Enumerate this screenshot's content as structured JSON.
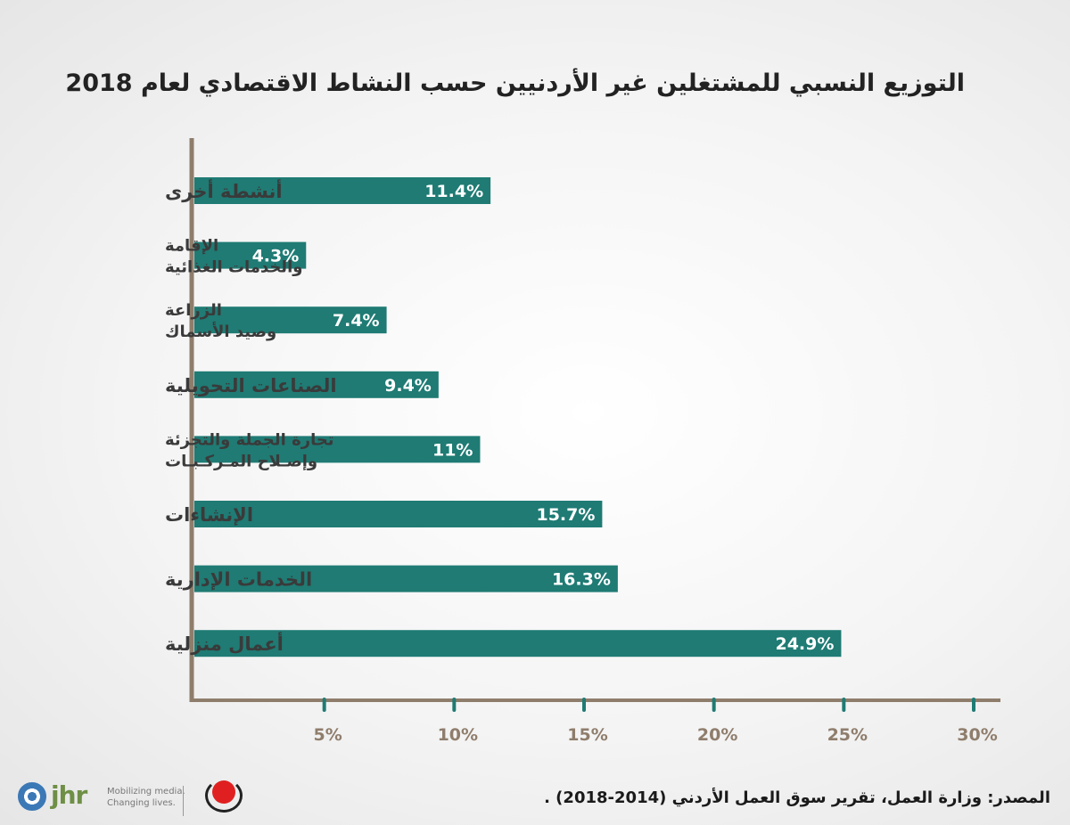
{
  "chart_data": {
    "type": "bar",
    "orientation": "horizontal",
    "title": "التوزيع النسبي للمشتغلين غير الأردنيين حسب النشاط الاقتصادي لعام 2018",
    "categories": [
      [
        "أنشطة أخرى"
      ],
      [
        "الإقامة",
        "والخدمات الغذائية"
      ],
      [
        "الزراعة",
        "وصيد الأسماك"
      ],
      [
        "الصناعات التحويلية"
      ],
      [
        "تجارة الجملة والتجزئة",
        "وإصـلاح المـركـبـات"
      ],
      [
        "الإنشاءات"
      ],
      [
        "الخدمات الإدارية"
      ],
      [
        "أعمال منزلية"
      ]
    ],
    "values": [
      11.4,
      4.3,
      7.4,
      9.4,
      11,
      15.7,
      16.3,
      24.9
    ],
    "value_labels": [
      "11.4%",
      "4.3%",
      "7.4%",
      "9.4%",
      "11%",
      "15.7%",
      "16.3%",
      "24.9%"
    ],
    "x_ticks": [
      5,
      10,
      15,
      20,
      25,
      30
    ],
    "x_tick_labels": [
      "5%",
      "10%",
      "15%",
      "20%",
      "25%",
      "30%"
    ],
    "xlim": [
      0,
      30
    ],
    "xlabel": "",
    "ylabel": "",
    "grid": false,
    "bar_color": "#1f7b74",
    "axis_color": "#8f7d6c",
    "tick_color": "#1f7b74"
  },
  "source": "المصدر: وزارة العمل، تقرير سوق العمل الأردني (2014-2018) .",
  "logos": {
    "jhr_name": "jhr",
    "jhr_tagline": "Mobilizing media. Changing lives."
  }
}
